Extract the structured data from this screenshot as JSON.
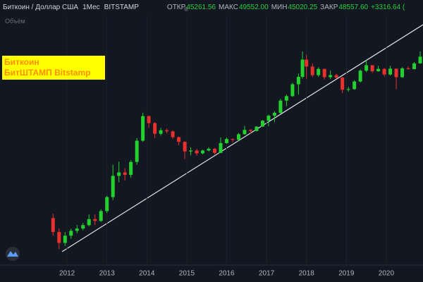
{
  "chart_data": {
    "type": "candlestick",
    "title": "Биткоин / Доллар США",
    "interval": "1Мес",
    "exchange": "BITSTAMP",
    "ohlc_legend": [
      {
        "label": "ОТКР",
        "value": "45261.56"
      },
      {
        "label": "МАКС",
        "value": "49552.00"
      },
      {
        "label": "МИН",
        "value": "45020.25"
      },
      {
        "label": "ЗАКР",
        "value": "48557.60"
      }
    ],
    "change": "+3316.64 (",
    "volume_label": "Объём",
    "annotations": [
      "Биткоин",
      "БитШТАМП Bitstamp"
    ],
    "x": [
      2011.65,
      2011.8,
      2011.95,
      2012.1,
      2012.25,
      2012.4,
      2012.55,
      2012.7,
      2012.85,
      2013.0,
      2013.15,
      2013.3,
      2013.45,
      2013.6,
      2013.75,
      2013.9,
      2014.05,
      2014.2,
      2014.35,
      2014.5,
      2014.65,
      2014.8,
      2014.95,
      2015.1,
      2015.25,
      2015.4,
      2015.55,
      2015.7,
      2015.85,
      2016.0,
      2016.15,
      2016.3,
      2016.45,
      2016.6,
      2016.75,
      2016.9,
      2017.05,
      2017.2,
      2017.35,
      2017.5,
      2017.65,
      2017.8,
      2017.9,
      2018.0,
      2018.15,
      2018.3,
      2018.45,
      2018.6,
      2018.75,
      2018.9,
      2019.05,
      2019.2,
      2019.35,
      2019.5,
      2019.65,
      2019.8,
      2019.95,
      2020.1,
      2020.25,
      2020.4,
      2020.55,
      2020.7,
      2020.85
    ],
    "open": [
      13.6,
      7.4,
      4.6,
      6.3,
      7.8,
      8.6,
      10,
      13,
      12,
      18.5,
      34,
      86,
      100,
      90,
      158,
      400,
      1170,
      860,
      540,
      630,
      600,
      465,
      380,
      250,
      260,
      230,
      260,
      280,
      235,
      360,
      430,
      415,
      530,
      640,
      610,
      740,
      960,
      1190,
      1350,
      2300,
      2800,
      4700,
      6500,
      13800,
      10200,
      7000,
      9200,
      6400,
      7000,
      6300,
      3700,
      3800,
      5300,
      8500,
      10800,
      8300,
      9200,
      7200,
      9300,
      6400,
      9400,
      9100,
      11700
    ],
    "high": [
      16.5,
      8.6,
      7.4,
      8.6,
      10,
      11,
      16,
      16,
      20,
      36,
      140,
      160,
      120,
      170,
      450,
      1360,
      1200,
      900,
      700,
      680,
      620,
      480,
      390,
      300,
      280,
      270,
      300,
      290,
      460,
      460,
      440,
      560,
      760,
      660,
      750,
      980,
      1250,
      1450,
      2500,
      3000,
      5000,
      7500,
      19700,
      17000,
      11700,
      9900,
      9200,
      8500,
      7400,
      6500,
      4200,
      5600,
      9000,
      13800,
      10900,
      10500,
      9500,
      10500,
      9200,
      9900,
      10300,
      12400,
      19800
    ],
    "low": [
      6.3,
      3.5,
      4,
      5.5,
      7,
      8,
      9.5,
      10,
      11.5,
      17,
      30,
      65,
      70,
      80,
      140,
      380,
      700,
      450,
      500,
      550,
      430,
      330,
      180,
      210,
      210,
      220,
      250,
      220,
      230,
      350,
      370,
      400,
      520,
      550,
      600,
      730,
      750,
      900,
      1300,
      1800,
      2700,
      3000,
      6000,
      6000,
      6500,
      6500,
      5800,
      5900,
      6000,
      3200,
      3400,
      3700,
      5100,
      8000,
      7700,
      8100,
      6600,
      6900,
      3800,
      6200,
      8900,
      9000,
      11500
    ],
    "close": [
      7.4,
      4.6,
      6.3,
      7.8,
      8.6,
      10,
      13,
      12,
      18.5,
      34,
      86,
      100,
      90,
      158,
      400,
      1170,
      860,
      540,
      630,
      600,
      465,
      380,
      250,
      260,
      230,
      260,
      280,
      235,
      360,
      430,
      415,
      530,
      640,
      610,
      740,
      960,
      1190,
      1350,
      2300,
      2800,
      4700,
      6500,
      13800,
      10200,
      7000,
      9200,
      6400,
      7000,
      6300,
      3700,
      3800,
      5300,
      8500,
      10800,
      8300,
      9200,
      7200,
      9300,
      6400,
      9400,
      9100,
      11700,
      15700
    ],
    "up_color": "#22d12e",
    "down_color": "#e8302c",
    "log_scale": true,
    "ylim": [
      2.1,
      74000
    ],
    "xlim": [
      2010.32,
      2020.92
    ],
    "xticks": [
      2012,
      2013,
      2014,
      2015,
      2016,
      2017,
      2018,
      2019,
      2020
    ],
    "grid": true
  }
}
